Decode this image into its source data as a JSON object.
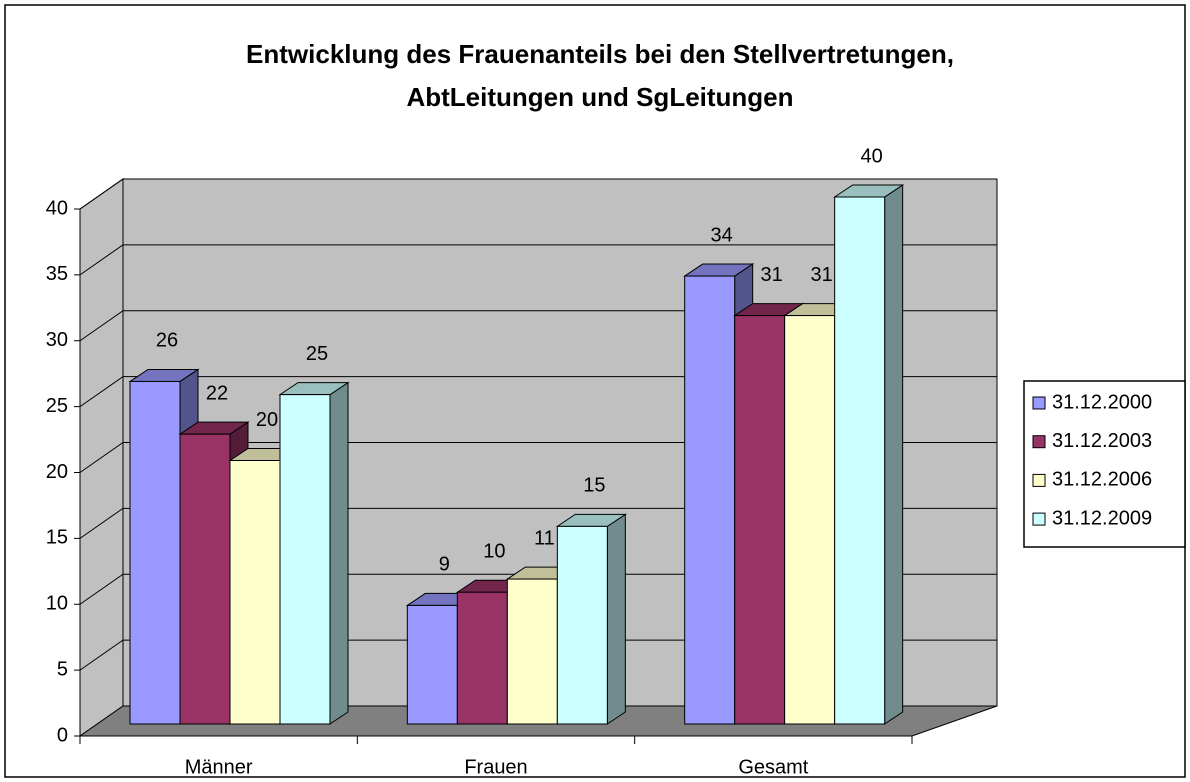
{
  "chart_data": {
    "type": "bar3d",
    "title": [
      "Entwicklung des Frauenanteils bei den Stellvertretungen,",
      "AbtLeitungen und SgLeitungen"
    ],
    "categories": [
      "Männer",
      "Frauen",
      "Gesamt"
    ],
    "series": [
      {
        "name": "31.12.2000",
        "color": "#9999ff",
        "values": [
          26,
          9,
          34
        ]
      },
      {
        "name": "31.12.2003",
        "color": "#993366",
        "values": [
          22,
          10,
          31
        ]
      },
      {
        "name": "31.12.2006",
        "color": "#ffffcc",
        "values": [
          20,
          11,
          31
        ]
      },
      {
        "name": "31.12.2009",
        "color": "#ccffff",
        "values": [
          25,
          15,
          40
        ]
      }
    ],
    "ylim": [
      0,
      40
    ],
    "yticks": [
      0,
      5,
      10,
      15,
      20,
      25,
      30,
      35,
      40
    ],
    "grid": true,
    "legend": "right"
  }
}
